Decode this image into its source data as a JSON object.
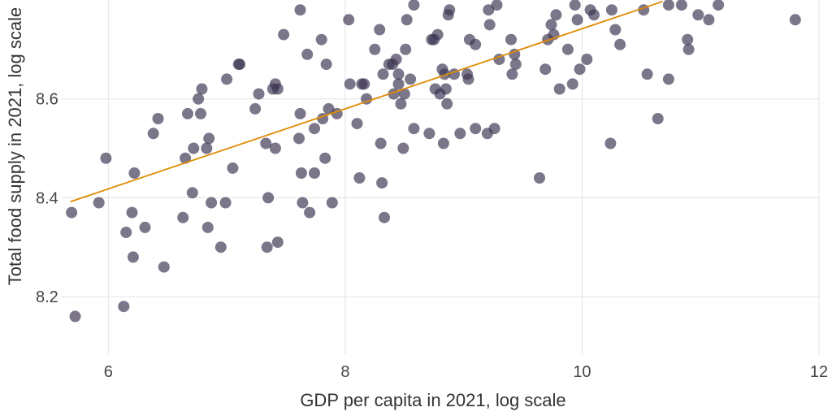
{
  "chart_data": {
    "type": "scatter",
    "title": "",
    "xlabel": "GDP per capita in 2021, log scale",
    "ylabel": "Total food supply in 2021, log scale",
    "xlim": [
      5.6,
      12.0
    ],
    "ylim": [
      8.09,
      8.8
    ],
    "x_ticks": [
      6,
      8,
      10,
      12
    ],
    "x_tick_labels": [
      "6",
      "8",
      "10",
      "12"
    ],
    "y_ticks": [
      8.2,
      8.4,
      8.6
    ],
    "y_tick_labels": [
      "8.2",
      "8.4",
      "8.6"
    ],
    "grid": true,
    "colors": {
      "points": "#3d3552",
      "trend": "#e08a00",
      "grid": "#e2e2e2"
    },
    "trend_line": {
      "x": [
        5.68,
        10.68
      ],
      "y": [
        8.392,
        8.797
      ]
    },
    "points": [
      [
        5.69,
        8.37
      ],
      [
        5.72,
        8.16
      ],
      [
        5.92,
        8.39
      ],
      [
        5.98,
        8.48
      ],
      [
        6.13,
        8.18
      ],
      [
        6.15,
        8.33
      ],
      [
        6.2,
        8.37
      ],
      [
        6.21,
        8.28
      ],
      [
        6.22,
        8.45
      ],
      [
        6.31,
        8.34
      ],
      [
        6.38,
        8.53
      ],
      [
        6.42,
        8.56
      ],
      [
        6.47,
        8.26
      ],
      [
        6.63,
        8.36
      ],
      [
        6.65,
        8.48
      ],
      [
        6.67,
        8.57
      ],
      [
        6.71,
        8.41
      ],
      [
        6.72,
        8.5
      ],
      [
        6.76,
        8.6
      ],
      [
        6.78,
        8.57
      ],
      [
        6.79,
        8.62
      ],
      [
        6.83,
        8.5
      ],
      [
        6.84,
        8.34
      ],
      [
        6.85,
        8.52
      ],
      [
        6.87,
        8.39
      ],
      [
        6.95,
        8.3
      ],
      [
        6.99,
        8.39
      ],
      [
        7.0,
        8.64
      ],
      [
        7.05,
        8.46
      ],
      [
        7.1,
        8.67
      ],
      [
        7.11,
        8.67
      ],
      [
        7.24,
        8.58
      ],
      [
        7.27,
        8.61
      ],
      [
        7.33,
        8.51
      ],
      [
        7.34,
        8.3
      ],
      [
        7.35,
        8.4
      ],
      [
        7.39,
        8.62
      ],
      [
        7.41,
        8.5
      ],
      [
        7.41,
        8.63
      ],
      [
        7.43,
        8.31
      ],
      [
        7.43,
        8.62
      ],
      [
        7.48,
        8.73
      ],
      [
        7.61,
        8.52
      ],
      [
        7.62,
        8.78
      ],
      [
        7.62,
        8.57
      ],
      [
        7.63,
        8.45
      ],
      [
        7.64,
        8.39
      ],
      [
        7.68,
        8.69
      ],
      [
        7.7,
        8.37
      ],
      [
        7.74,
        8.45
      ],
      [
        7.74,
        8.54
      ],
      [
        7.8,
        8.72
      ],
      [
        7.81,
        8.56
      ],
      [
        7.83,
        8.48
      ],
      [
        7.84,
        8.67
      ],
      [
        7.86,
        8.58
      ],
      [
        7.89,
        8.39
      ],
      [
        7.93,
        8.57
      ],
      [
        8.03,
        8.76
      ],
      [
        8.04,
        8.63
      ],
      [
        8.1,
        8.55
      ],
      [
        8.12,
        8.44
      ],
      [
        8.14,
        8.63
      ],
      [
        8.16,
        8.63
      ],
      [
        8.18,
        8.6
      ],
      [
        8.25,
        8.7
      ],
      [
        8.29,
        8.74
      ],
      [
        8.3,
        8.51
      ],
      [
        8.31,
        8.43
      ],
      [
        8.32,
        8.65
      ],
      [
        8.33,
        8.36
      ],
      [
        8.37,
        8.67
      ],
      [
        8.4,
        8.67
      ],
      [
        8.41,
        8.61
      ],
      [
        8.43,
        8.68
      ],
      [
        8.45,
        8.63
      ],
      [
        8.45,
        8.65
      ],
      [
        8.47,
        8.59
      ],
      [
        8.49,
        8.5
      ],
      [
        8.5,
        8.61
      ],
      [
        8.51,
        8.7
      ],
      [
        8.52,
        8.76
      ],
      [
        8.55,
        8.64
      ],
      [
        8.58,
        8.54
      ],
      [
        8.58,
        8.79
      ],
      [
        8.71,
        8.53
      ],
      [
        8.73,
        8.72
      ],
      [
        8.75,
        8.72
      ],
      [
        8.76,
        8.62
      ],
      [
        8.78,
        8.73
      ],
      [
        8.8,
        8.61
      ],
      [
        8.82,
        8.66
      ],
      [
        8.83,
        8.51
      ],
      [
        8.84,
        8.65
      ],
      [
        8.85,
        8.62
      ],
      [
        8.86,
        8.59
      ],
      [
        8.87,
        8.77
      ],
      [
        8.88,
        8.78
      ],
      [
        8.92,
        8.65
      ],
      [
        8.97,
        8.53
      ],
      [
        9.03,
        8.65
      ],
      [
        9.04,
        8.64
      ],
      [
        9.05,
        8.72
      ],
      [
        9.1,
        8.71
      ],
      [
        9.1,
        8.54
      ],
      [
        9.2,
        8.53
      ],
      [
        9.21,
        8.78
      ],
      [
        9.22,
        8.75
      ],
      [
        9.26,
        8.54
      ],
      [
        9.28,
        8.79
      ],
      [
        9.3,
        8.68
      ],
      [
        9.4,
        8.72
      ],
      [
        9.41,
        8.65
      ],
      [
        9.43,
        8.69
      ],
      [
        9.44,
        8.67
      ],
      [
        9.64,
        8.44
      ],
      [
        9.69,
        8.66
      ],
      [
        9.71,
        8.72
      ],
      [
        9.74,
        8.75
      ],
      [
        9.76,
        8.73
      ],
      [
        9.78,
        8.77
      ],
      [
        9.81,
        8.62
      ],
      [
        9.88,
        8.7
      ],
      [
        9.92,
        8.63
      ],
      [
        9.94,
        8.79
      ],
      [
        9.96,
        8.76
      ],
      [
        9.98,
        8.66
      ],
      [
        10.04,
        8.68
      ],
      [
        10.07,
        8.78
      ],
      [
        10.1,
        8.77
      ],
      [
        10.24,
        8.51
      ],
      [
        10.25,
        8.78
      ],
      [
        10.28,
        8.74
      ],
      [
        10.32,
        8.71
      ],
      [
        10.52,
        8.78
      ],
      [
        10.55,
        8.65
      ],
      [
        10.64,
        8.56
      ],
      [
        10.73,
        8.64
      ],
      [
        10.73,
        8.79
      ],
      [
        10.84,
        8.79
      ],
      [
        10.89,
        8.72
      ],
      [
        10.9,
        8.7
      ],
      [
        10.98,
        8.77
      ],
      [
        11.07,
        8.76
      ],
      [
        11.15,
        8.79
      ],
      [
        11.8,
        8.76
      ]
    ]
  }
}
